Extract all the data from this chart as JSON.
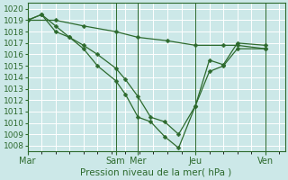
{
  "xlabel": "Pression niveau de la mer( hPa )",
  "bg_color": "#cce8e8",
  "grid_color": "#aacccc",
  "line_color": "#2d6a2d",
  "ylim": [
    1007.5,
    1020.5
  ],
  "yticks": [
    1008,
    1009,
    1010,
    1011,
    1012,
    1013,
    1014,
    1015,
    1016,
    1017,
    1018,
    1019,
    1020
  ],
  "xlim": [
    0,
    9.2
  ],
  "xtick_labels": [
    "Mar",
    "Sam",
    "Mer",
    "Jeu",
    "Ven"
  ],
  "xtick_pos": [
    0.0,
    3.15,
    3.95,
    6.0,
    8.5
  ],
  "vline_pos": [
    0.0,
    3.15,
    3.95,
    6.0,
    8.5
  ],
  "minor_x": [
    0,
    0.5,
    1.0,
    1.5,
    2.0,
    2.5,
    3.0,
    3.5,
    4.0,
    4.5,
    5.0,
    5.5,
    6.0,
    6.5,
    7.0,
    7.5,
    8.0,
    8.5,
    9.0
  ],
  "lines": [
    {
      "x": [
        0.0,
        0.5,
        1.0,
        1.5,
        2.0,
        2.5,
        3.15,
        3.5,
        3.95,
        4.4,
        4.9,
        5.4,
        6.0,
        6.5,
        7.0,
        7.5,
        8.5
      ],
      "y": [
        1019.0,
        1019.5,
        1018.0,
        1017.5,
        1016.5,
        1015.0,
        1013.7,
        1012.5,
        1010.5,
        1010.1,
        1008.8,
        1007.8,
        1011.5,
        1014.5,
        1015.0,
        1016.5,
        1016.5
      ]
    },
    {
      "x": [
        0.0,
        0.5,
        1.0,
        1.5,
        2.0,
        2.5,
        3.15,
        3.5,
        3.95,
        4.4,
        4.9,
        5.4,
        6.0,
        6.5,
        7.0,
        7.5,
        8.5
      ],
      "y": [
        1019.0,
        1019.5,
        1018.5,
        1017.5,
        1016.8,
        1016.0,
        1014.8,
        1013.8,
        1012.3,
        1010.5,
        1010.1,
        1009.0,
        1011.5,
        1015.5,
        1015.1,
        1017.0,
        1016.8
      ]
    },
    {
      "x": [
        0.0,
        1.0,
        2.0,
        3.15,
        3.95,
        5.0,
        6.0,
        7.0,
        7.5,
        8.5
      ],
      "y": [
        1019.0,
        1019.0,
        1018.5,
        1018.0,
        1017.5,
        1017.2,
        1016.8,
        1016.8,
        1016.8,
        1016.5
      ]
    }
  ]
}
